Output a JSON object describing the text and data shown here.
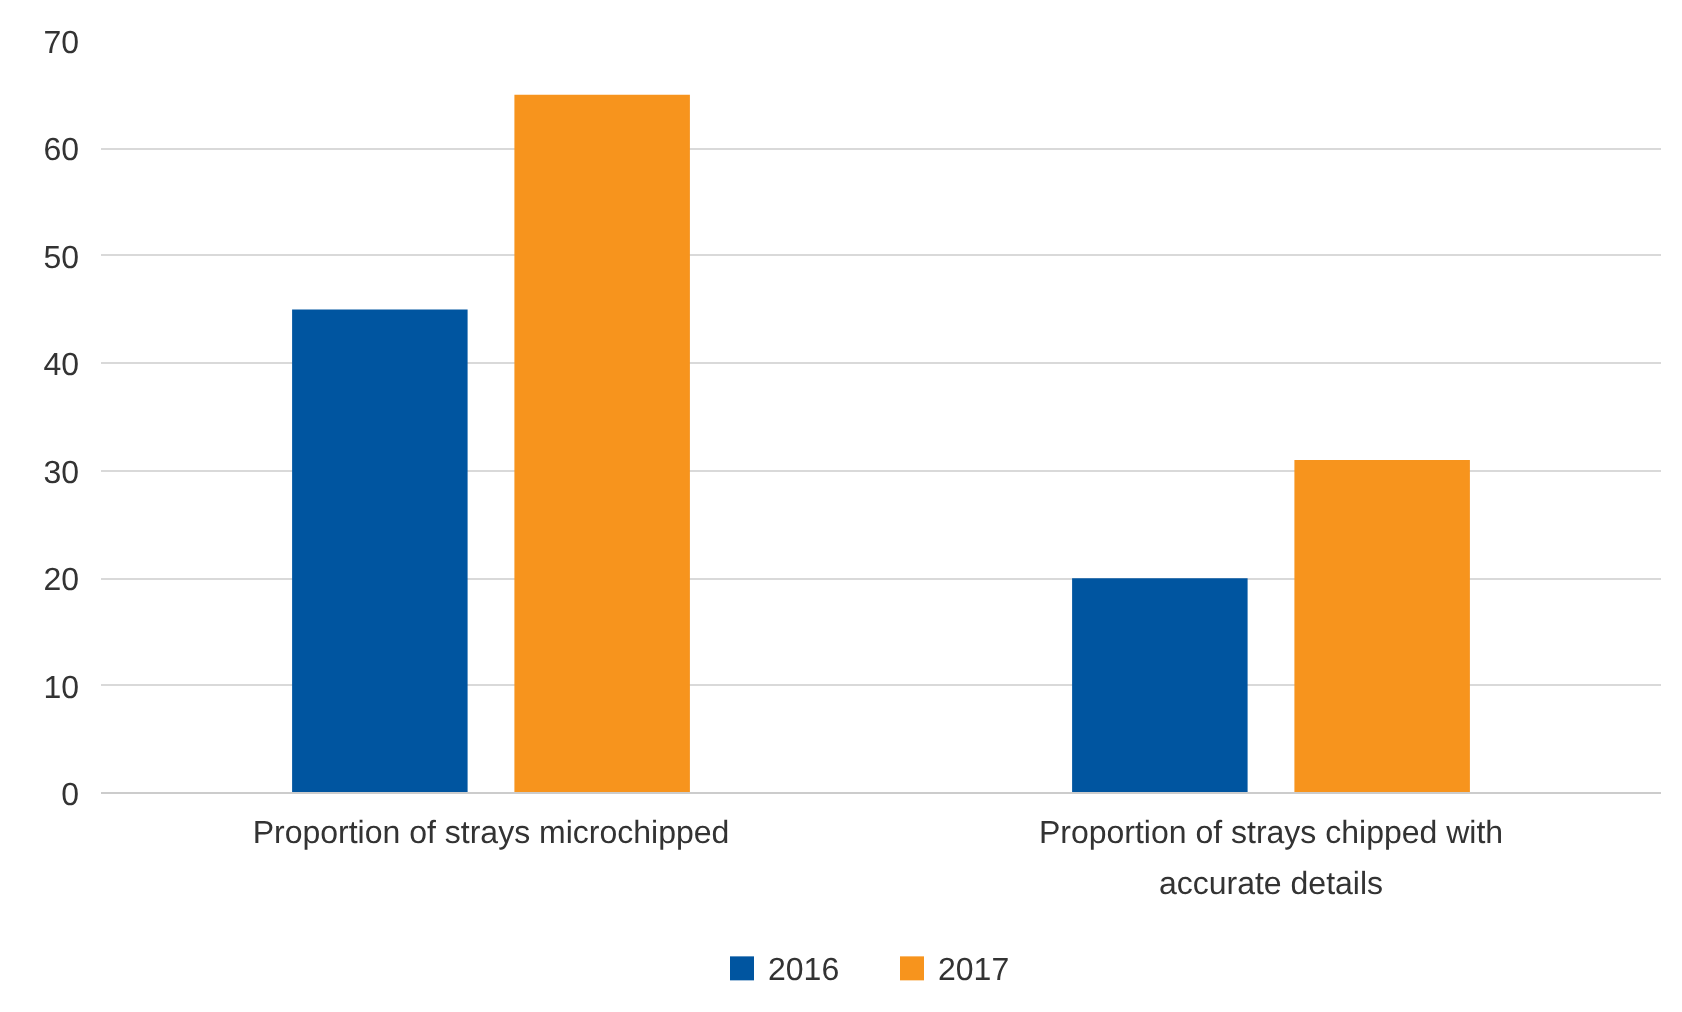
{
  "chart_data": {
    "type": "bar",
    "categories": [
      "Proportion of strays microchipped",
      "Proportion of strays chipped with accurate details"
    ],
    "series": [
      {
        "name": "2016",
        "color": "#0055a0",
        "values": [
          45,
          20
        ]
      },
      {
        "name": "2017",
        "color": "#f7941d",
        "values": [
          65,
          31
        ]
      }
    ],
    "ylim": [
      0,
      70
    ],
    "yticks": [
      0,
      10,
      20,
      30,
      40,
      50,
      60,
      70
    ],
    "grid": "y",
    "legend": "bottom"
  }
}
